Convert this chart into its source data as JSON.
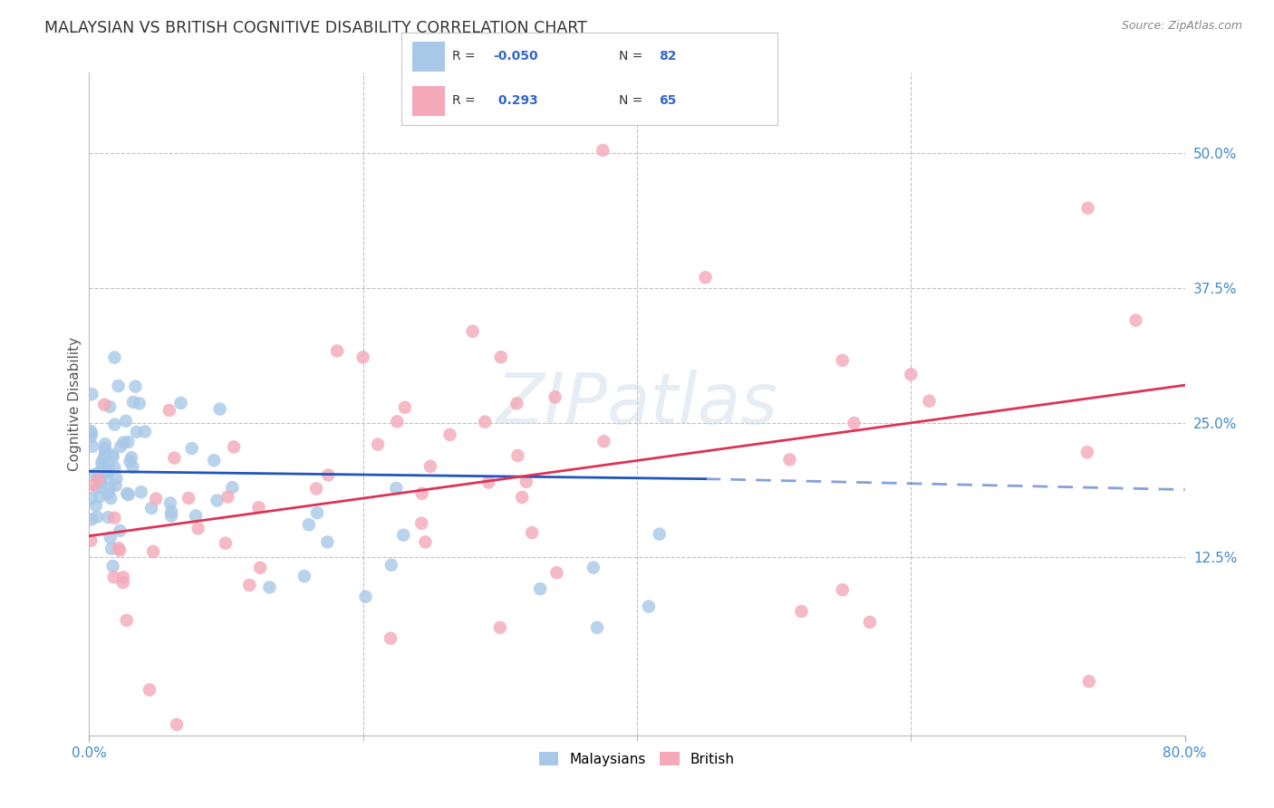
{
  "title": "MALAYSIAN VS BRITISH COGNITIVE DISABILITY CORRELATION CHART",
  "source": "Source: ZipAtlas.com",
  "ylabel": "Cognitive Disability",
  "watermark": "ZIPatlas",
  "legend_blue_label": "Malaysians",
  "legend_pink_label": "British",
  "blue_color": "#a8c8e8",
  "pink_color": "#f4a8b8",
  "blue_line_color": "#2255bb",
  "pink_line_color": "#dd3355",
  "background_color": "#ffffff",
  "grid_color": "#bbbbbb",
  "axis_tick_color": "#4488cc",
  "title_color": "#333333",
  "source_color": "#888888",
  "xlim": [
    0.0,
    0.8
  ],
  "ylim": [
    -0.04,
    0.575
  ],
  "yticks": [
    0.125,
    0.25,
    0.375,
    0.5
  ],
  "ytick_labels": [
    "12.5%",
    "25.0%",
    "37.5%",
    "50.0%"
  ],
  "xtick_left": "0.0%",
  "xtick_right": "80.0%",
  "malay_line_x0": 0.0,
  "malay_line_y0": 0.205,
  "malay_line_x1": 0.45,
  "malay_line_y1": 0.198,
  "malay_line_dash_x0": 0.45,
  "malay_line_dash_y0": 0.198,
  "malay_line_dash_x1": 0.8,
  "malay_line_dash_y1": 0.188,
  "brit_line_x0": 0.0,
  "brit_line_y0": 0.145,
  "brit_line_x1": 0.8,
  "brit_line_y1": 0.285
}
